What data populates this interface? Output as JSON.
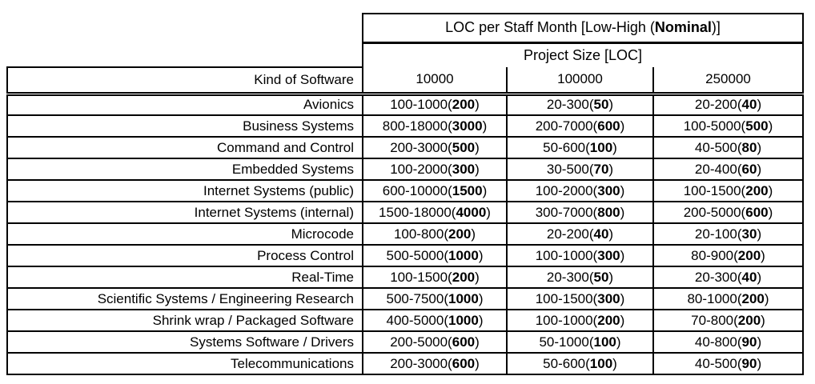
{
  "table": {
    "title": {
      "pre": "LOC per Staff Month [Low-High (",
      "bold": "Nominal",
      "post": ")]"
    },
    "subtitle": "Project Size [LOC]",
    "corner_label": "Kind of Software",
    "size_columns": [
      "10000",
      "100000",
      "250000"
    ],
    "rows": [
      {
        "kind": "Avionics",
        "values": [
          {
            "range": "100-1000",
            "nominal": "200"
          },
          {
            "range": "20-300",
            "nominal": "50"
          },
          {
            "range": "20-200",
            "nominal": "40"
          }
        ]
      },
      {
        "kind": "Business Systems",
        "values": [
          {
            "range": "800-18000",
            "nominal": "3000"
          },
          {
            "range": "200-7000",
            "nominal": "600"
          },
          {
            "range": "100-5000",
            "nominal": "500"
          }
        ]
      },
      {
        "kind": "Command and Control",
        "values": [
          {
            "range": "200-3000",
            "nominal": "500"
          },
          {
            "range": "50-600",
            "nominal": "100"
          },
          {
            "range": "40-500",
            "nominal": "80"
          }
        ]
      },
      {
        "kind": "Embedded Systems",
        "values": [
          {
            "range": "100-2000",
            "nominal": "300"
          },
          {
            "range": "30-500",
            "nominal": "70"
          },
          {
            "range": "20-400",
            "nominal": "60"
          }
        ]
      },
      {
        "kind": "Internet Systems (public)",
        "values": [
          {
            "range": "600-10000",
            "nominal": "1500"
          },
          {
            "range": "100-2000",
            "nominal": "300"
          },
          {
            "range": "100-1500",
            "nominal": "200"
          }
        ]
      },
      {
        "kind": "Internet Systems (internal)",
        "values": [
          {
            "range": "1500-18000",
            "nominal": "4000"
          },
          {
            "range": "300-7000",
            "nominal": "800"
          },
          {
            "range": "200-5000",
            "nominal": "600"
          }
        ]
      },
      {
        "kind": "Microcode",
        "values": [
          {
            "range": "100-800",
            "nominal": "200"
          },
          {
            "range": "20-200",
            "nominal": "40"
          },
          {
            "range": "20-100",
            "nominal": "30"
          }
        ]
      },
      {
        "kind": "Process Control",
        "values": [
          {
            "range": "500-5000",
            "nominal": "1000"
          },
          {
            "range": "100-1000",
            "nominal": "300"
          },
          {
            "range": "80-900",
            "nominal": "200"
          }
        ]
      },
      {
        "kind": "Real-Time",
        "values": [
          {
            "range": "100-1500",
            "nominal": "200"
          },
          {
            "range": "20-300",
            "nominal": "50"
          },
          {
            "range": "20-300",
            "nominal": "40"
          }
        ]
      },
      {
        "kind": "Scientific Systems / Engineering Research",
        "values": [
          {
            "range": "500-7500",
            "nominal": "1000"
          },
          {
            "range": "100-1500",
            "nominal": "300"
          },
          {
            "range": "80-1000",
            "nominal": "200"
          }
        ]
      },
      {
        "kind": "Shrink wrap / Packaged Software",
        "values": [
          {
            "range": "400-5000",
            "nominal": "1000"
          },
          {
            "range": "100-1000",
            "nominal": "200"
          },
          {
            "range": "70-800",
            "nominal": "200"
          }
        ]
      },
      {
        "kind": "Systems Software / Drivers",
        "values": [
          {
            "range": "200-5000",
            "nominal": "600"
          },
          {
            "range": "50-1000",
            "nominal": "100"
          },
          {
            "range": "40-800",
            "nominal": "90"
          }
        ]
      },
      {
        "kind": "Telecommunications",
        "values": [
          {
            "range": "200-3000",
            "nominal": "600"
          },
          {
            "range": "50-600",
            "nominal": "100"
          },
          {
            "range": "40-500",
            "nominal": "90"
          }
        ]
      }
    ],
    "colors": {
      "border": "#000000",
      "text": "#000000",
      "background": "#ffffff"
    }
  }
}
